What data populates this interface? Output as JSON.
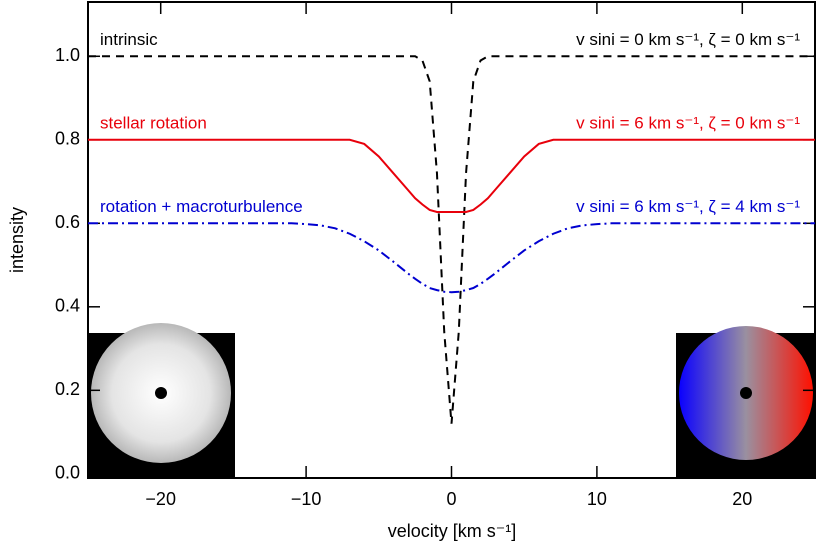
{
  "chart_data": {
    "type": "line",
    "xlabel": "velocity  [km s⁻¹]",
    "ylabel": "intensity",
    "xlim": [
      -25,
      25
    ],
    "ylim": [
      -0.01,
      1.13
    ],
    "xticks": [
      {
        "value": -20,
        "label": "−20"
      },
      {
        "value": -10,
        "label": "−10"
      },
      0,
      10,
      20
    ],
    "yticks": [
      {
        "value": 0,
        "label": "0.0"
      },
      0.2,
      0.4,
      0.6,
      0.8,
      {
        "value": 1,
        "label": "1.0"
      }
    ],
    "x": [
      -25,
      -20,
      -15,
      -12,
      -11,
      -10,
      -9,
      -8,
      -7,
      -6,
      -5,
      -4,
      -3,
      -2.5,
      -2,
      -1.5,
      -1,
      -0.5,
      0,
      0.5,
      1,
      1.5,
      2,
      2.5,
      3,
      4,
      5,
      6,
      7,
      8,
      9,
      10,
      11,
      12,
      15,
      20,
      25
    ],
    "series": [
      {
        "name": "intrinsic",
        "note": "v sini = 0 km s⁻¹, ζ = 0 km s⁻¹",
        "color": "#000000",
        "dash": "8,6",
        "values": [
          1,
          1,
          1,
          1,
          1,
          1,
          1,
          1,
          1,
          1,
          1,
          1,
          1,
          1,
          0.99,
          0.94,
          0.72,
          0.34,
          0.12,
          0.34,
          0.72,
          0.94,
          0.99,
          1,
          1,
          1,
          1,
          1,
          1,
          1,
          1,
          1,
          1,
          1,
          1,
          1,
          1
        ]
      },
      {
        "name": "stellar rotation",
        "note": "v sini = 6 km s⁻¹, ζ = 0 km s⁻¹",
        "color": "#e8000b",
        "dash": "none",
        "values": [
          0.8,
          0.8,
          0.8,
          0.8,
          0.8,
          0.8,
          0.8,
          0.8,
          0.8,
          0.79,
          0.76,
          0.72,
          0.68,
          0.66,
          0.645,
          0.632,
          0.627,
          0.627,
          0.627,
          0.627,
          0.627,
          0.632,
          0.645,
          0.66,
          0.68,
          0.72,
          0.76,
          0.79,
          0.8,
          0.8,
          0.8,
          0.8,
          0.8,
          0.8,
          0.8,
          0.8,
          0.8
        ]
      },
      {
        "name": "rotation + macroturbulence",
        "note": "v sini = 6 km s⁻¹, ζ = 4 km s⁻¹",
        "color": "#0000d0",
        "dash": "10,4,2,4",
        "values": [
          0.6,
          0.6,
          0.6,
          0.6,
          0.6,
          0.598,
          0.595,
          0.588,
          0.575,
          0.557,
          0.535,
          0.508,
          0.48,
          0.467,
          0.455,
          0.445,
          0.44,
          0.436,
          0.435,
          0.436,
          0.44,
          0.445,
          0.455,
          0.467,
          0.48,
          0.508,
          0.535,
          0.557,
          0.575,
          0.588,
          0.595,
          0.598,
          0.6,
          0.6,
          0.6,
          0.6,
          0.6
        ]
      }
    ]
  }
}
